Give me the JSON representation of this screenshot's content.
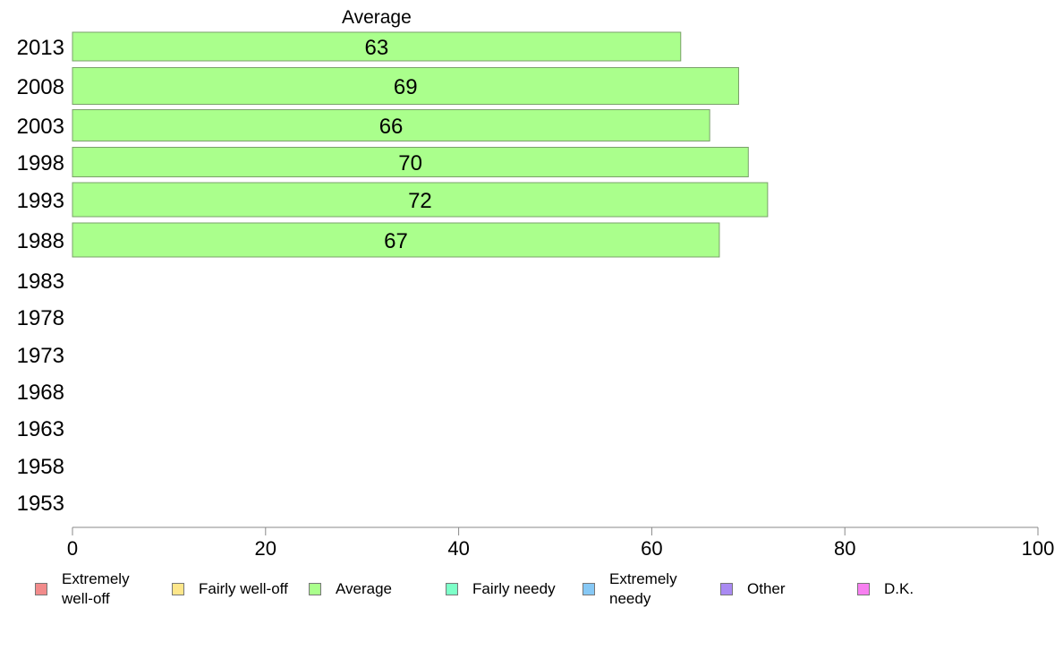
{
  "chart_data": {
    "type": "bar",
    "orientation": "horizontal",
    "stacked": true,
    "categories": [
      "2013",
      "2008",
      "2003",
      "1998",
      "1993",
      "1988",
      "1983",
      "1978",
      "1973",
      "1968",
      "1963",
      "1958",
      "1953"
    ],
    "series": [
      {
        "name": "Extremely well-off",
        "color": "#f28b8b",
        "values": [
          null,
          null,
          null,
          null,
          null,
          null,
          null,
          null,
          null,
          null,
          null,
          null,
          null
        ]
      },
      {
        "name": "Fairly well-off",
        "color": "#fde68a",
        "values": [
          null,
          null,
          null,
          null,
          null,
          null,
          null,
          null,
          null,
          null,
          null,
          null,
          null
        ]
      },
      {
        "name": "Average",
        "color": "#aaff8c",
        "values": [
          63,
          69,
          66,
          70,
          72,
          67,
          null,
          null,
          null,
          null,
          null,
          null,
          null
        ]
      },
      {
        "name": "Fairly needy",
        "color": "#7dffc8",
        "values": [
          null,
          null,
          null,
          null,
          null,
          null,
          null,
          null,
          null,
          null,
          null,
          null,
          null
        ]
      },
      {
        "name": "Extremely needy",
        "color": "#86c8f5",
        "values": [
          null,
          null,
          null,
          null,
          null,
          null,
          null,
          null,
          null,
          null,
          null,
          null,
          null
        ]
      },
      {
        "name": "Other",
        "color": "#a98af2",
        "values": [
          null,
          null,
          null,
          null,
          null,
          null,
          null,
          null,
          null,
          null,
          null,
          null,
          null
        ]
      },
      {
        "name": "D.K.",
        "color": "#f77ff0",
        "values": [
          null,
          null,
          null,
          null,
          null,
          null,
          null,
          null,
          null,
          null,
          null,
          null,
          null
        ]
      }
    ],
    "visible_series_title": "Average",
    "xlim": [
      0,
      100
    ],
    "xticks": [
      0,
      20,
      40,
      60,
      80,
      100
    ],
    "grid": false,
    "legend_position": "bottom"
  },
  "legend": [
    {
      "label": "Extremely\nwell-off",
      "color": "#f28b8b"
    },
    {
      "label": "Fairly well-off",
      "color": "#fde68a"
    },
    {
      "label": "Average",
      "color": "#aaff8c"
    },
    {
      "label": "Fairly needy",
      "color": "#7dffc8"
    },
    {
      "label": "Extremely\nneedy",
      "color": "#86c8f5"
    },
    {
      "label": "Other",
      "color": "#a98af2"
    },
    {
      "label": "D.K.",
      "color": "#f77ff0"
    }
  ]
}
